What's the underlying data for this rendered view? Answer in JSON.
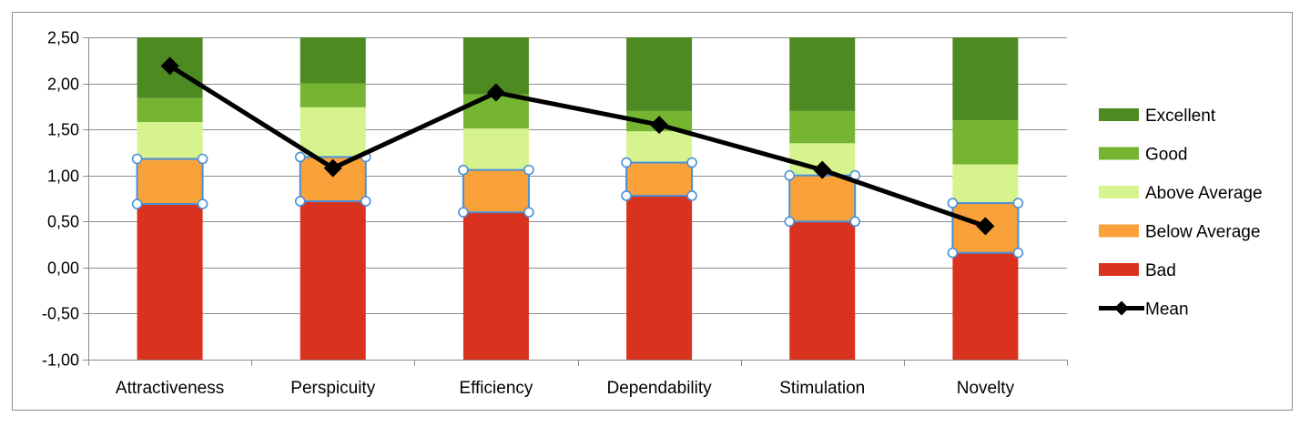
{
  "chart_data": {
    "type": "bar",
    "stacked": true,
    "categories": [
      "Attractiveness",
      "Perspicuity",
      "Efficiency",
      "Dependability",
      "Stimulation",
      "Novelty"
    ],
    "ylim": [
      -1.0,
      2.5
    ],
    "yticks": [
      "2,50",
      "2,00",
      "1,50",
      "1,00",
      "0,50",
      "0,00",
      "-0,50",
      "-1,00"
    ],
    "ytick_values": [
      2.5,
      2.0,
      1.5,
      1.0,
      0.5,
      0.0,
      -0.5,
      -1.0
    ],
    "grid": true,
    "legend_position": "right",
    "benchmark_upper_bounds": [
      {
        "name": "Bad",
        "values": [
          0.69,
          0.72,
          0.6,
          0.78,
          0.5,
          0.16
        ],
        "color": "#d9321f"
      },
      {
        "name": "Below Average",
        "values": [
          1.18,
          1.2,
          1.06,
          1.14,
          1.0,
          0.7
        ],
        "color": "#f9a23a"
      },
      {
        "name": "Above Average",
        "values": [
          1.58,
          1.74,
          1.51,
          1.48,
          1.35,
          1.12
        ],
        "color": "#d6f38d"
      },
      {
        "name": "Good",
        "values": [
          1.84,
          2.0,
          1.88,
          1.7,
          1.7,
          1.6
        ],
        "color": "#76b531"
      },
      {
        "name": "Excellent",
        "values": [
          2.5,
          2.5,
          2.5,
          2.5,
          2.5,
          2.5
        ],
        "color": "#4d8a21"
      }
    ],
    "mean": {
      "name": "Mean",
      "values": [
        2.19,
        1.08,
        1.9,
        1.55,
        1.06,
        0.45
      ],
      "color": "#000000"
    },
    "legend": [
      {
        "name": "Excellent",
        "color": "#4d8a21",
        "kind": "box"
      },
      {
        "name": "Good",
        "color": "#76b531",
        "kind": "box"
      },
      {
        "name": "Above Average",
        "color": "#d6f38d",
        "kind": "box"
      },
      {
        "name": "Below Average",
        "color": "#f9a23a",
        "kind": "box"
      },
      {
        "name": "Bad",
        "color": "#d9321f",
        "kind": "box"
      },
      {
        "name": "Mean",
        "color": "#000000",
        "kind": "line"
      }
    ],
    "selection_color": "#4a90d9"
  }
}
